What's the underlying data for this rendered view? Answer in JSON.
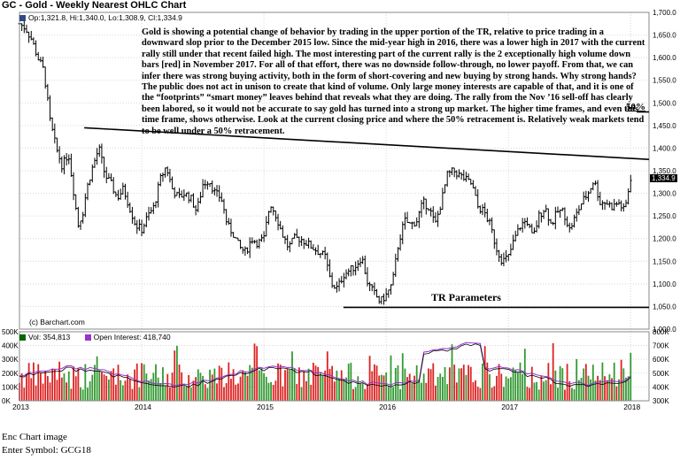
{
  "chart_title": "GC - Gold - Weekly Nearest OHLC Chart",
  "ohlc_readout": "Op:1,321.8, Hi:1,340.0, Lo:1,308.9, Cl:1,334.9",
  "volume_readout": "Vol: 354,813",
  "oi_readout": "Open Interest: 418,740",
  "source": "(c) Barchart.com",
  "annotation": "Gold is showing a potential change of behavior by trading in the upper portion of the TR, relative to price trading in a downward slop prior to the December 2015 low.  Since the mid-year high in 2016, there was a lower high in 2017 with the current rally still under that recent failed high.  The most interesting part of the current rally is the 2 exceptionally high volume down bars [red] in November 2017.  For all of that effort, there was no downside follow-through, no lower payoff.  From that, we can infer there was strong buying activity, both in the form of short-covering and new buying by strong hands.  Why strong hands?  The public does not act in unison to create that kind of volume.  Only large money interests are capable of that, and it is one of the “footprints” “smart money” leaves behind that reveals what they are doing.  The rally from the Nov ’16 sell-off has clearly been labored, so it would not be accurate to say gold has turned into a strong up market.  The higher time frames, and even this time frame, shows otherwise.  Look at the current closing price and where the 50% retracement is.  Relatively weak markets tend to be well under a 50% retracement.",
  "label_50": "50%",
  "label_tr": "TR Parameters",
  "last_price_label": "1,334.9",
  "footer_line1": "Enc Chart image",
  "footer_line2": "Enter Symbol: GCG18",
  "colors": {
    "up": "#006600",
    "down": "#cc0000",
    "vol_up": "#339933",
    "vol_down": "#dd2222",
    "oi": "#9933cc",
    "grid": "#cccccc",
    "price_bar": "#000000"
  },
  "chart_data": {
    "type": "ohlc",
    "title": "GC - Gold - Weekly Nearest OHLC Chart",
    "price_axis": {
      "min": 1000,
      "max": 1700,
      "ticks": [
        "1,000.0",
        "1,050.0",
        "1,100.0",
        "1,150.0",
        "1,200.0",
        "1,250.0",
        "1,300.0",
        "1,350.0",
        "1,400.0",
        "1,450.0",
        "1,500.0",
        "1,550.0",
        "1,600.0",
        "1,650.0",
        "1,700.0"
      ]
    },
    "volume_axis": {
      "min": 0,
      "max": 500000,
      "ticks": [
        "0K",
        "100K",
        "200K",
        "300K",
        "400K",
        "500K"
      ]
    },
    "oi_axis": {
      "min": 300000,
      "max": 800000,
      "ticks": [
        "300K",
        "400K",
        "500K",
        "600K",
        "700K",
        "800K"
      ]
    },
    "x_labels": [
      "2013",
      "2014",
      "2015",
      "2016",
      "2017",
      "2018"
    ],
    "price_path": [
      [
        2013.0,
        1675
      ],
      [
        2013.05,
        1665
      ],
      [
        2013.1,
        1640
      ],
      [
        2013.15,
        1600
      ],
      [
        2013.2,
        1570
      ],
      [
        2013.25,
        1460
      ],
      [
        2013.3,
        1400
      ],
      [
        2013.35,
        1360
      ],
      [
        2013.4,
        1390
      ],
      [
        2013.45,
        1290
      ],
      [
        2013.48,
        1230
      ],
      [
        2013.52,
        1260
      ],
      [
        2013.55,
        1310
      ],
      [
        2013.6,
        1360
      ],
      [
        2013.65,
        1400
      ],
      [
        2013.7,
        1340
      ],
      [
        2013.75,
        1320
      ],
      [
        2013.8,
        1290
      ],
      [
        2013.85,
        1310
      ],
      [
        2013.9,
        1270
      ],
      [
        2013.95,
        1230
      ],
      [
        2014.0,
        1220
      ],
      [
        2014.05,
        1250
      ],
      [
        2014.1,
        1270
      ],
      [
        2014.15,
        1330
      ],
      [
        2014.2,
        1360
      ],
      [
        2014.25,
        1310
      ],
      [
        2014.3,
        1290
      ],
      [
        2014.35,
        1300
      ],
      [
        2014.4,
        1290
      ],
      [
        2014.45,
        1260
      ],
      [
        2014.5,
        1320
      ],
      [
        2014.55,
        1330
      ],
      [
        2014.6,
        1300
      ],
      [
        2014.65,
        1290
      ],
      [
        2014.7,
        1230
      ],
      [
        2014.75,
        1210
      ],
      [
        2014.8,
        1180
      ],
      [
        2014.85,
        1170
      ],
      [
        2014.9,
        1200
      ],
      [
        2014.95,
        1190
      ],
      [
        2015.0,
        1200
      ],
      [
        2015.05,
        1280
      ],
      [
        2015.1,
        1250
      ],
      [
        2015.15,
        1210
      ],
      [
        2015.2,
        1180
      ],
      [
        2015.25,
        1200
      ],
      [
        2015.3,
        1200
      ],
      [
        2015.35,
        1190
      ],
      [
        2015.4,
        1180
      ],
      [
        2015.45,
        1170
      ],
      [
        2015.5,
        1160
      ],
      [
        2015.55,
        1100
      ],
      [
        2015.6,
        1090
      ],
      [
        2015.65,
        1120
      ],
      [
        2015.7,
        1130
      ],
      [
        2015.75,
        1140
      ],
      [
        2015.8,
        1160
      ],
      [
        2015.85,
        1100
      ],
      [
        2015.9,
        1080
      ],
      [
        2015.95,
        1060
      ],
      [
        2016.0,
        1075
      ],
      [
        2016.05,
        1100
      ],
      [
        2016.1,
        1190
      ],
      [
        2016.15,
        1240
      ],
      [
        2016.2,
        1230
      ],
      [
        2016.25,
        1240
      ],
      [
        2016.3,
        1280
      ],
      [
        2016.35,
        1270
      ],
      [
        2016.4,
        1230
      ],
      [
        2016.45,
        1280
      ],
      [
        2016.5,
        1340
      ],
      [
        2016.55,
        1350
      ],
      [
        2016.6,
        1340
      ],
      [
        2016.65,
        1330
      ],
      [
        2016.7,
        1320
      ],
      [
        2016.75,
        1270
      ],
      [
        2016.8,
        1260
      ],
      [
        2016.85,
        1230
      ],
      [
        2016.9,
        1180
      ],
      [
        2016.95,
        1150
      ],
      [
        2017.0,
        1160
      ],
      [
        2017.05,
        1200
      ],
      [
        2017.1,
        1230
      ],
      [
        2017.15,
        1240
      ],
      [
        2017.2,
        1200
      ],
      [
        2017.25,
        1250
      ],
      [
        2017.3,
        1270
      ],
      [
        2017.35,
        1230
      ],
      [
        2017.4,
        1260
      ],
      [
        2017.45,
        1260
      ],
      [
        2017.5,
        1220
      ],
      [
        2017.55,
        1250
      ],
      [
        2017.6,
        1280
      ],
      [
        2017.65,
        1300
      ],
      [
        2017.7,
        1330
      ],
      [
        2017.75,
        1280
      ],
      [
        2017.8,
        1280
      ],
      [
        2017.85,
        1270
      ],
      [
        2017.9,
        1280
      ],
      [
        2017.95,
        1260
      ],
      [
        2018.0,
        1334.9
      ]
    ],
    "trendline_upper": [
      [
        2013.53,
        1445
      ],
      [
        2018.15,
        1375
      ]
    ],
    "trendline_low": [
      [
        2015.65,
        1048
      ],
      [
        2018.15,
        1048
      ]
    ],
    "retracement_50": 1480,
    "last": {
      "open": 1321.8,
      "high": 1340.0,
      "low": 1308.9,
      "close": 1334.9,
      "volume": 354813,
      "open_interest": 418740
    }
  }
}
